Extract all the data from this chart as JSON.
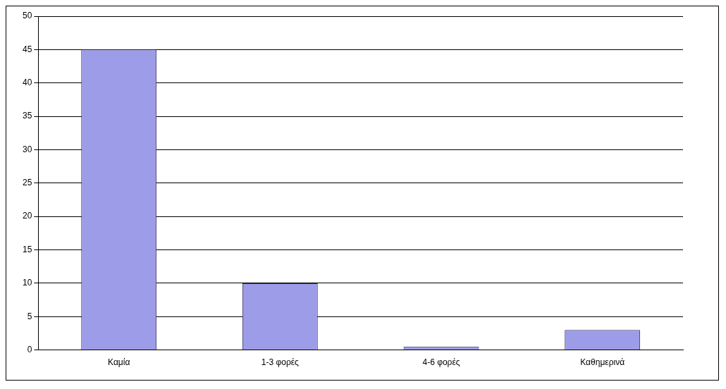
{
  "chart_data": {
    "type": "bar",
    "categories": [
      "Καμία",
      "1-3 φορές",
      "4-6 φορές",
      "Καθημερινά"
    ],
    "values": [
      45,
      10,
      0.5,
      3
    ],
    "color": "#9c9ce8",
    "ylim": [
      0,
      50
    ],
    "yticks": [
      0,
      5,
      10,
      15,
      20,
      25,
      30,
      35,
      40,
      45,
      50
    ],
    "grid": "y",
    "legend": false
  }
}
